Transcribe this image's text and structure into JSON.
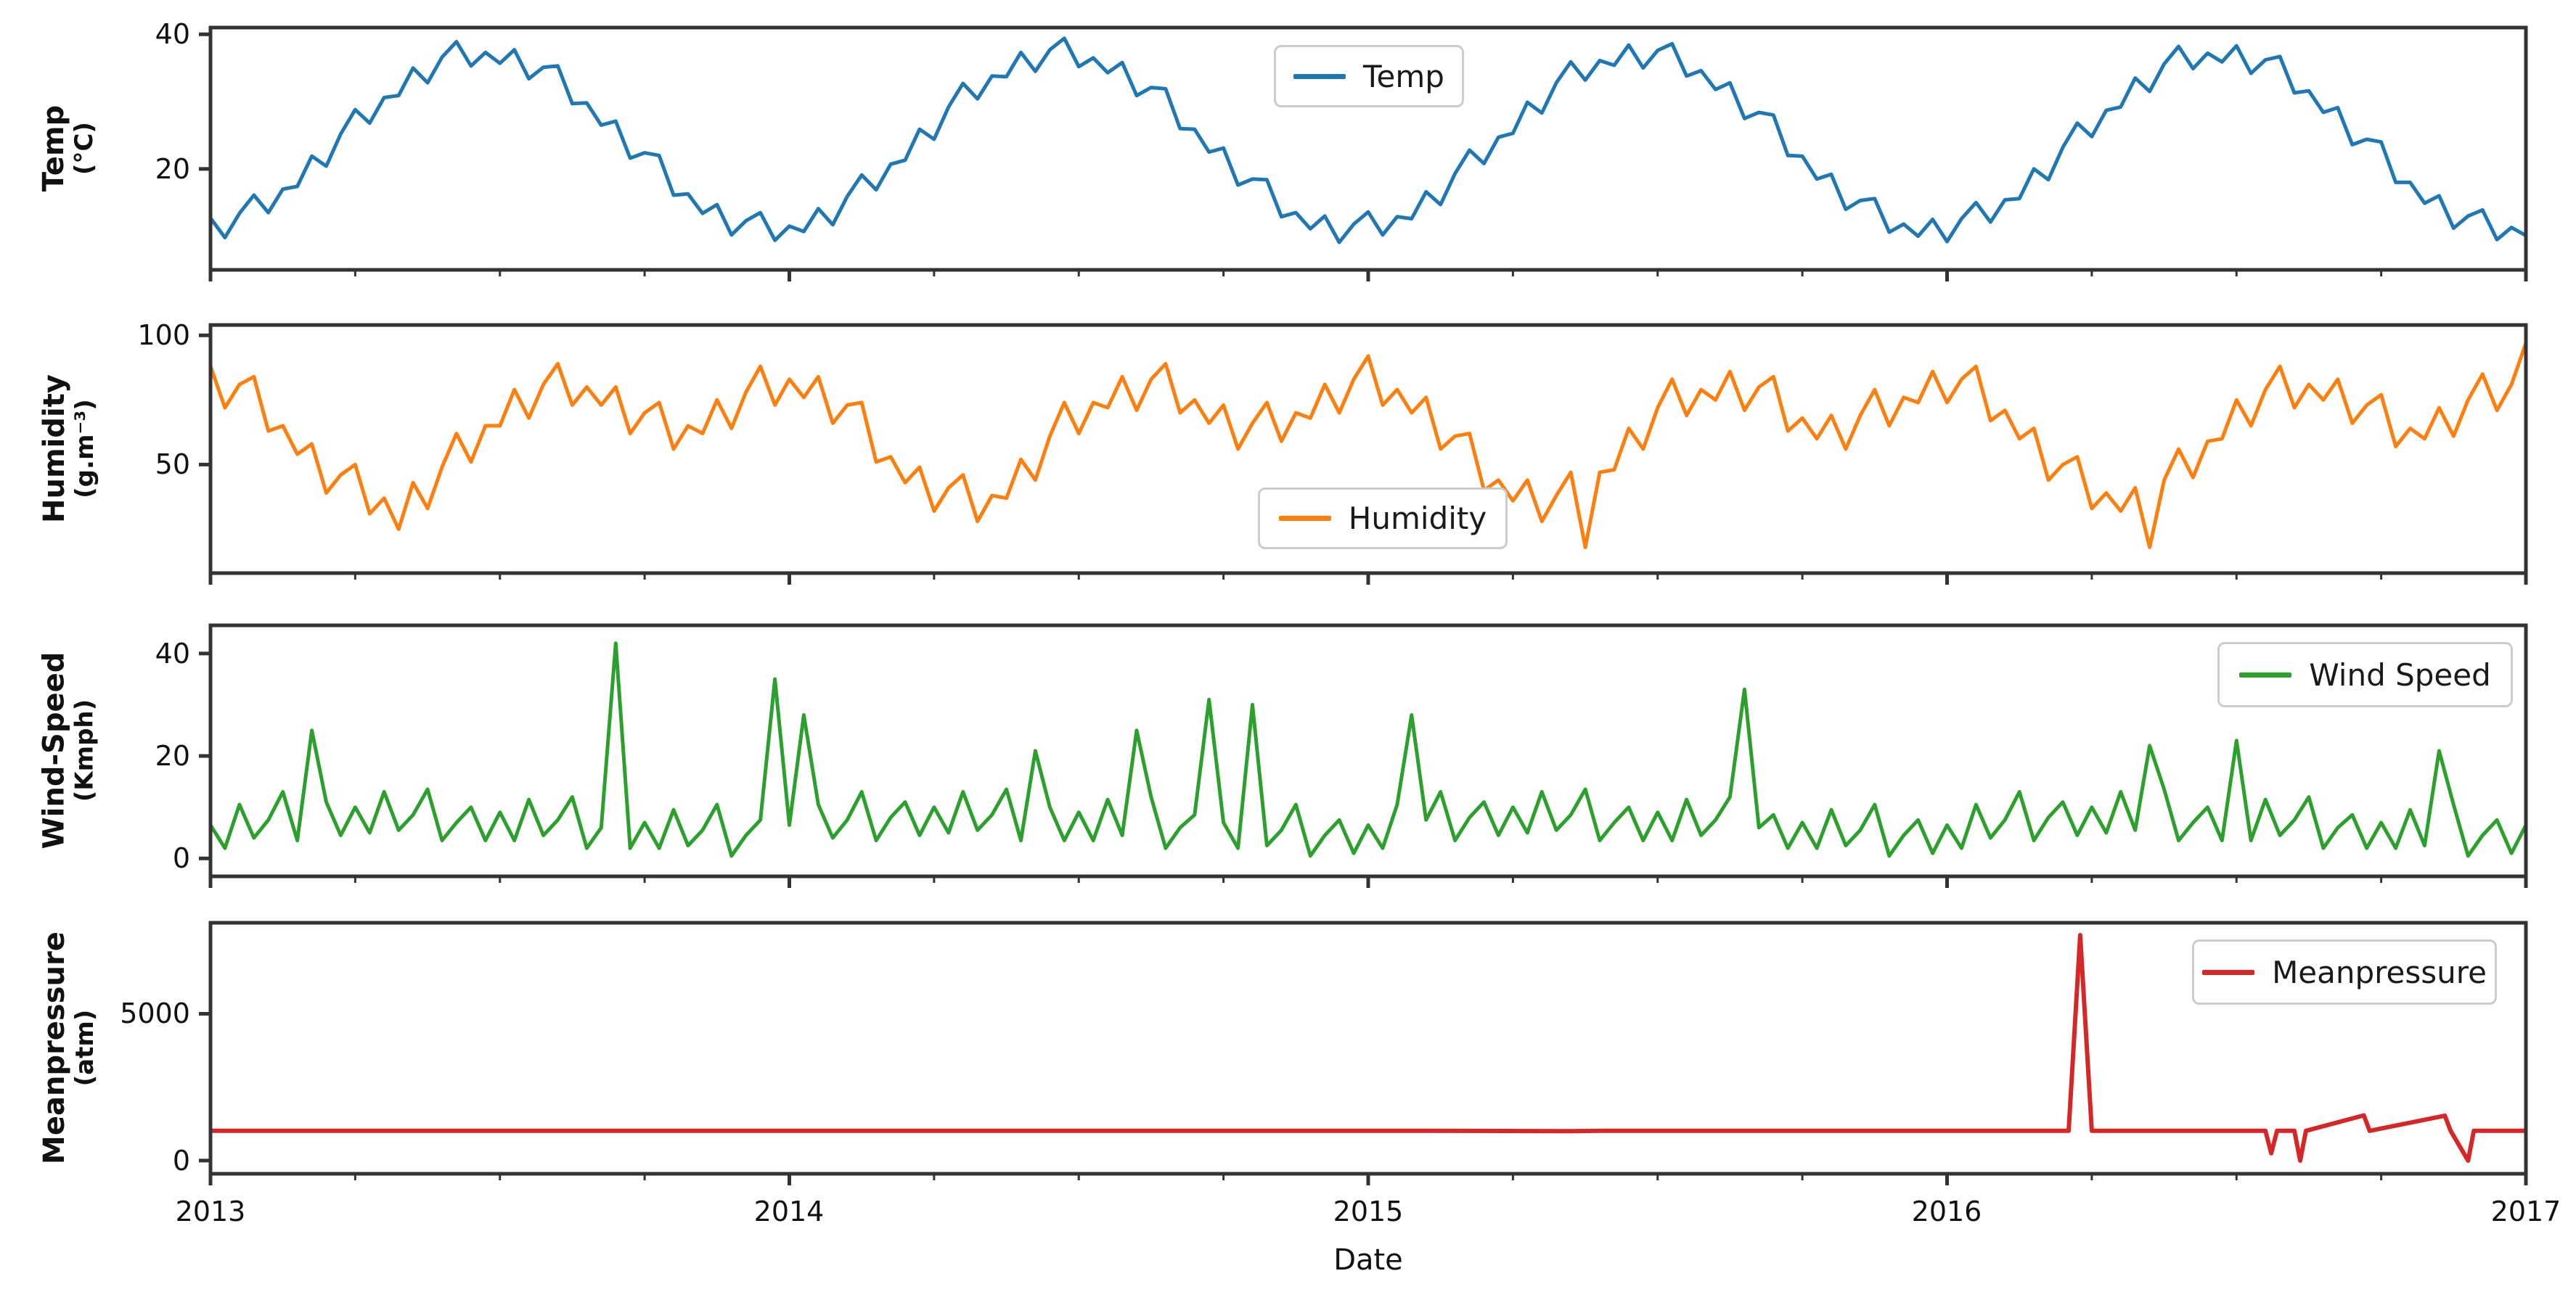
{
  "x_axis": {
    "label": "Date",
    "ticks": [
      "2013",
      "2014",
      "2015",
      "2016",
      "2017"
    ],
    "xlim": [
      2013,
      2017
    ],
    "minor_tick_interval": 0.25
  },
  "layout_hints": {
    "grid": "off",
    "legend_positions": [
      "upper center",
      "lower center",
      "upper right",
      "upper right"
    ]
  },
  "chart_data": [
    {
      "type": "line",
      "name": "Temp",
      "color": "#1f77b4",
      "ylabel": "Temp",
      "yunit": "(°C)",
      "legend": "Temp",
      "yticks": [
        "40",
        "20"
      ],
      "ytick_values": [
        40,
        20
      ],
      "ylim": [
        5,
        41
      ],
      "x_start": 2013,
      "x_step": 0.025,
      "values": [
        12.7,
        9.8,
        13.4,
        16.1,
        13.5,
        17,
        17.4,
        21.9,
        20.4,
        25.2,
        28.8,
        26.8,
        30.6,
        30.9,
        35,
        32.8,
        36.6,
        38.9,
        35.3,
        37.3,
        35.7,
        37.7,
        33.4,
        35.1,
        35.3,
        29.7,
        29.8,
        26.5,
        27.1,
        21.6,
        22.4,
        22,
        16.1,
        16.3,
        13.4,
        14.7,
        10.2,
        12.3,
        13.5,
        9.4,
        11.5,
        10.7,
        14.1,
        11.7,
        15.9,
        19.1,
        16.9,
        20.7,
        21.3,
        25.9,
        24.4,
        29.2,
        32.7,
        30.4,
        33.8,
        33.7,
        37.3,
        34.5,
        37.7,
        39.4,
        35.2,
        36.5,
        34.3,
        35.8,
        30.9,
        32.1,
        31.9,
        26,
        25.9,
        22.5,
        23.1,
        17.6,
        18.5,
        18.4,
        12.9,
        13.5,
        11.1,
        13,
        9.1,
        11.8,
        13.6,
        10.2,
        12.9,
        12.6,
        16.6,
        14.7,
        19.3,
        22.8,
        20.8,
        24.7,
        25.3,
        29.9,
        28.3,
        32.8,
        35.9,
        33.2,
        36.1,
        35.4,
        38.4,
        35,
        37.6,
        38.6,
        33.8,
        34.6,
        31.8,
        32.8,
        27.5,
        28.4,
        28,
        22,
        21.9,
        18.5,
        19.2,
        14,
        15.3,
        15.6,
        10.6,
        11.8,
        10,
        12.5,
        9.2,
        12.6,
        15,
        12.1,
        15.4,
        15.6,
        20,
        18.4,
        23.2,
        26.8,
        24.8,
        28.7,
        29.2,
        33.5,
        31.5,
        35.6,
        38.2,
        34.9,
        37.2,
        35.9,
        38.3,
        34.2,
        36.2,
        36.7,
        31.3,
        31.6,
        28.4,
        29.1,
        23.6,
        24.4,
        24,
        18,
        18,
        14.9,
        16,
        11.2,
        13,
        13.9,
        9.5,
        11.3,
        10.1
      ]
    },
    {
      "type": "line",
      "name": "Humidity",
      "color": "#ff7f0e",
      "ylabel": "Humidity",
      "yunit": "(g.m⁻³)",
      "legend": "Humidity",
      "yticks": [
        "100",
        "50"
      ],
      "ytick_values": [
        100,
        50
      ],
      "ylim": [
        8,
        104
      ],
      "x_start": 2013,
      "x_step": 0.025,
      "values": [
        88,
        72,
        81,
        84,
        63,
        65,
        54,
        58,
        39,
        46,
        50,
        31,
        37,
        25,
        43,
        33,
        49,
        62,
        51,
        65,
        65,
        79,
        68,
        81,
        89,
        73,
        80,
        73,
        80,
        62,
        70,
        74,
        56,
        65,
        62,
        75,
        64,
        78,
        88,
        73,
        83,
        76,
        84,
        66,
        73,
        74,
        51,
        53,
        43,
        49,
        32,
        41,
        46,
        28,
        38,
        37,
        52,
        44,
        61,
        74,
        62,
        74,
        72,
        84,
        71,
        83,
        89,
        70,
        75,
        66,
        73,
        56,
        66,
        74,
        59,
        70,
        68,
        81,
        70,
        83,
        92,
        73,
        79,
        70,
        76,
        56,
        61,
        62,
        40,
        44,
        36,
        44,
        28,
        38,
        47,
        18,
        47,
        48,
        64,
        56,
        72,
        83,
        69,
        79,
        75,
        86,
        71,
        80,
        84,
        63,
        68,
        60,
        69,
        56,
        69,
        79,
        65,
        76,
        74,
        86,
        74,
        83,
        88,
        67,
        71,
        60,
        64,
        44,
        50,
        53,
        33,
        39,
        32,
        41,
        18,
        44,
        56,
        45,
        59,
        60,
        75,
        65,
        79,
        88,
        72,
        81,
        75,
        83,
        66,
        73,
        77,
        57,
        64,
        60,
        72,
        61,
        75,
        85,
        71,
        81,
        97
      ]
    },
    {
      "type": "line",
      "name": "Wind Speed",
      "color": "#2ca02c",
      "ylabel": "Wind-Speed",
      "yunit": "(Kmph)",
      "legend": "Wind Speed",
      "yticks": [
        "40",
        "20",
        "0"
      ],
      "ytick_values": [
        40,
        20,
        0
      ],
      "ylim": [
        -3.5,
        45.5
      ],
      "x_start": 2013,
      "x_step": 0.025,
      "values": [
        6.5,
        2,
        10.5,
        4,
        7.5,
        13,
        3.5,
        25,
        11,
        4.5,
        10,
        5,
        13,
        5.5,
        8.5,
        13.5,
        3.5,
        7,
        10,
        3.5,
        9,
        3.5,
        11.5,
        4.5,
        7.5,
        12,
        2,
        6,
        42,
        2,
        7,
        2,
        9.5,
        2.5,
        5.5,
        10.5,
        0.5,
        4.5,
        7.5,
        35,
        6.5,
        28,
        10.5,
        4,
        7.5,
        13,
        3.5,
        8,
        11,
        4.5,
        10,
        5,
        13,
        5.5,
        8.5,
        13.5,
        3.5,
        21,
        10,
        3.5,
        9,
        3.5,
        11.5,
        4.5,
        25,
        12,
        2,
        6,
        8.5,
        31,
        7,
        2,
        30,
        2.5,
        5.5,
        10.5,
        0.5,
        4.5,
        7.5,
        1,
        6.5,
        2,
        10.5,
        28,
        7.5,
        13,
        3.5,
        8,
        11,
        4.5,
        10,
        5,
        13,
        5.5,
        8.5,
        13.5,
        3.5,
        7,
        10,
        3.5,
        9,
        3.5,
        11.5,
        4.5,
        7.5,
        12,
        33,
        6,
        8.5,
        2,
        7,
        2,
        9.5,
        2.5,
        5.5,
        10.5,
        0.5,
        4.5,
        7.5,
        1,
        6.5,
        2,
        10.5,
        4,
        7.5,
        13,
        3.5,
        8,
        11,
        4.5,
        10,
        5,
        13,
        5.5,
        22,
        13.5,
        3.5,
        7,
        10,
        3.5,
        23,
        3.5,
        11.5,
        4.5,
        7.5,
        12,
        2,
        6,
        8.5,
        2,
        7,
        2,
        9.5,
        2.5,
        21,
        10.5,
        0.5,
        4.5,
        7.5,
        1,
        6.5
      ]
    },
    {
      "type": "line",
      "name": "Meanpressure",
      "color": "#d62728",
      "ylabel": "Meanpressure",
      "yunit": "(atm)",
      "legend": "Meanpressure",
      "yticks": [
        "5000",
        "0"
      ],
      "ytick_values": [
        5000,
        0
      ],
      "ylim": [
        -450,
        8100
      ],
      "points": [
        [
          2013.0,
          1014
        ],
        [
          2013.3,
          1012
        ],
        [
          2013.6,
          1015
        ],
        [
          2013.9,
          1013
        ],
        [
          2014.2,
          1012
        ],
        [
          2014.5,
          1014
        ],
        [
          2014.8,
          1013
        ],
        [
          2015.1,
          1015
        ],
        [
          2015.35,
          1000
        ],
        [
          2015.4,
          1013
        ],
        [
          2015.7,
          1012
        ],
        [
          2016.0,
          1014
        ],
        [
          2016.21,
          1013
        ],
        [
          2016.23,
          7679
        ],
        [
          2016.25,
          1013
        ],
        [
          2016.45,
          1015
        ],
        [
          2016.55,
          1013
        ],
        [
          2016.56,
          250
        ],
        [
          2016.57,
          1013
        ],
        [
          2016.6,
          1013
        ],
        [
          2016.61,
          -3
        ],
        [
          2016.62,
          1013
        ],
        [
          2016.72,
          1540
        ],
        [
          2016.73,
          1013
        ],
        [
          2016.86,
          1530
        ],
        [
          2016.87,
          1013
        ],
        [
          2016.9,
          -3
        ],
        [
          2016.91,
          1013
        ],
        [
          2017.0,
          1014
        ]
      ]
    }
  ]
}
